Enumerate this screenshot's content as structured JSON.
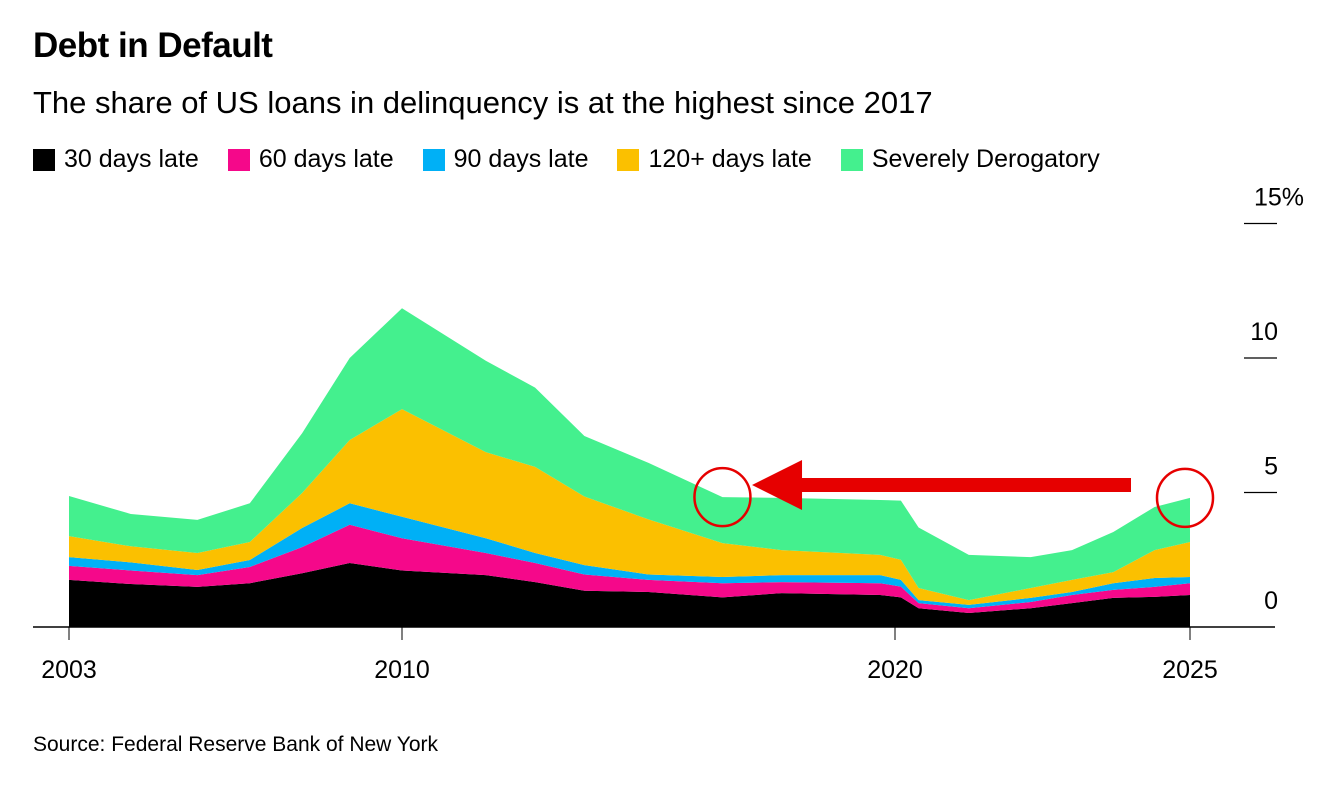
{
  "chart_data": {
    "type": "area",
    "stacked": true,
    "title": "Debt in Default",
    "subtitle": "The share of US loans in delinquency is at the highest since 2017",
    "source": "Source: Federal Reserve Bank of New York",
    "x": [
      2003.0,
      2004.3,
      2005.7,
      2006.8,
      2007.9,
      2008.9,
      2010.0,
      2011.7,
      2012.7,
      2013.7,
      2015.0,
      2016.5,
      2017.7,
      2019.7,
      2020.1,
      2020.4,
      2021.25,
      2022.3,
      2023.0,
      2023.7,
      2024.4,
      2025.0
    ],
    "series": [
      {
        "name": "30 days late",
        "color": "#000000",
        "values": [
          1.75,
          1.6,
          1.49,
          1.63,
          2.0,
          2.38,
          2.1,
          1.93,
          1.67,
          1.35,
          1.3,
          1.1,
          1.26,
          1.19,
          1.1,
          0.7,
          0.52,
          0.7,
          0.89,
          1.08,
          1.12,
          1.19
        ]
      },
      {
        "name": "60 days late",
        "color": "#f5088a",
        "values": [
          0.52,
          0.5,
          0.44,
          0.6,
          0.97,
          1.42,
          1.2,
          0.82,
          0.71,
          0.6,
          0.45,
          0.53,
          0.41,
          0.44,
          0.4,
          0.19,
          0.18,
          0.23,
          0.3,
          0.3,
          0.37,
          0.44
        ]
      },
      {
        "name": "90 days late",
        "color": "#00b0f6",
        "values": [
          0.33,
          0.3,
          0.19,
          0.26,
          0.71,
          0.8,
          0.8,
          0.55,
          0.37,
          0.35,
          0.2,
          0.23,
          0.26,
          0.3,
          0.25,
          0.11,
          0.12,
          0.15,
          0.11,
          0.25,
          0.33,
          0.23
        ]
      },
      {
        "name": "120+ days late",
        "color": "#fbc000",
        "values": [
          0.78,
          0.6,
          0.63,
          0.67,
          1.3,
          2.35,
          4.0,
          3.2,
          3.2,
          2.55,
          2.05,
          1.26,
          0.93,
          0.75,
          0.75,
          0.45,
          0.18,
          0.37,
          0.45,
          0.41,
          1.04,
          1.3
        ]
      },
      {
        "name": "Severely Derogatory",
        "color": "#44f08e",
        "values": [
          1.49,
          1.2,
          1.23,
          1.44,
          2.22,
          3.05,
          3.75,
          3.4,
          2.95,
          2.25,
          2.1,
          1.71,
          1.94,
          2.04,
          2.2,
          2.25,
          1.68,
          1.15,
          1.11,
          1.49,
          1.6,
          1.64
        ]
      }
    ],
    "xticks": [
      "2003",
      "2010",
      "2020",
      "2025"
    ],
    "yticks": [
      "0",
      "5",
      "10",
      "15%"
    ],
    "ylim": [
      0,
      15
    ],
    "xlim": [
      2003,
      2025
    ],
    "grid": false,
    "legend": "top",
    "yaxis_side": "right",
    "annotations": {
      "color": "#e60000",
      "circle_points": [
        2016.5,
        2025.0
      ],
      "arrow": {
        "from": 2024.0,
        "to": 2017.1
      }
    }
  }
}
